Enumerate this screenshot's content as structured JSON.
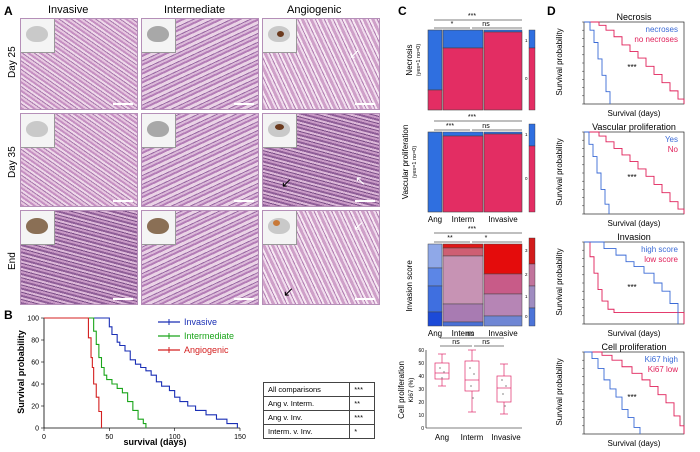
{
  "panels": {
    "A": "A",
    "B": "B",
    "C": "C",
    "D": "D"
  },
  "panelA": {
    "columns": [
      "Invasive",
      "Intermediate",
      "Angiogenic"
    ],
    "rows": [
      "Day 25",
      "Day 35",
      "End"
    ]
  },
  "panelB": {
    "legend": [
      "Invasive",
      "Intermediate",
      "Angiogenic"
    ],
    "colors": {
      "Invasive": "#1a2fb5",
      "Intermediate": "#1aa51a",
      "Angiogenic": "#d42020"
    },
    "table": [
      [
        "All comparisons",
        "***"
      ],
      [
        "Ang v. Interm.",
        "**"
      ],
      [
        "Ang v. Inv.",
        "***"
      ],
      [
        "Interm. v. Inv.",
        "*"
      ]
    ]
  },
  "panelC": {
    "necrosis": {
      "ylabel": "Necrosis",
      "sub": "(yes=1 no=0)",
      "sig": [
        "***",
        "*",
        "ns"
      ]
    },
    "vascular": {
      "ylabel": "Vascular proliferation",
      "sub": "(yes=1 no=0)",
      "sig": [
        "***",
        "***",
        "ns"
      ]
    },
    "invasion": {
      "ylabel": "Invasion score",
      "sig": [
        "***",
        "**",
        "*"
      ]
    },
    "cellprolif": {
      "ylabel": "Cell proliferation",
      "sub": "Ki67 (%)",
      "sig": [
        "ns",
        "ns",
        "ns"
      ]
    },
    "xcats": [
      "Ang",
      "Interm",
      "Invasive"
    ],
    "right1": [
      "1",
      "0"
    ],
    "right3": [
      "3",
      "2",
      "1",
      "0"
    ]
  },
  "panelD": {
    "plots": [
      {
        "title": "Necrosis",
        "legend": [
          "necroses",
          "no necroses"
        ],
        "sig": "***"
      },
      {
        "title": "Vascular proliferation",
        "legend": [
          "Yes",
          "No"
        ],
        "sig": "***"
      },
      {
        "title": "Invasion",
        "legend": [
          "high score",
          "low score"
        ],
        "sig": "***"
      },
      {
        "title": "Cell proliferation",
        "legend": [
          "Ki67 high",
          "Ki67 low"
        ],
        "sig": "***"
      }
    ],
    "ylabel": "Survival probability",
    "xlabel": "Survival (days)",
    "colors": {
      "blue": "#3a6ad6",
      "red": "#e0205a"
    }
  },
  "chart_data": [
    {
      "type": "line",
      "title": "",
      "xlabel": "survival (days)",
      "ylabel": "Survival probability",
      "xlim": [
        0,
        150
      ],
      "ylim": [
        0,
        100
      ],
      "xticks": [
        0,
        50,
        100,
        150
      ],
      "yticks": [
        0,
        20,
        40,
        60,
        80,
        100
      ],
      "series": [
        {
          "name": "Invasive",
          "x": [
            0,
            46,
            50,
            52,
            56,
            58,
            62,
            66,
            70,
            74,
            78,
            82,
            86,
            90,
            96,
            100,
            104,
            110,
            116,
            124,
            132,
            140,
            148
          ],
          "y": [
            100,
            100,
            92,
            85,
            78,
            75,
            70,
            62,
            58,
            55,
            52,
            48,
            42,
            38,
            34,
            28,
            24,
            20,
            16,
            12,
            8,
            4,
            0
          ]
        },
        {
          "name": "Intermediate",
          "x": [
            0,
            36,
            38,
            40,
            42,
            44,
            46,
            48,
            52,
            56,
            60,
            64,
            68,
            72,
            76,
            78
          ],
          "y": [
            100,
            100,
            88,
            76,
            64,
            55,
            48,
            44,
            40,
            36,
            32,
            24,
            16,
            8,
            4,
            0
          ]
        },
        {
          "name": "Angiogenic",
          "x": [
            0,
            32,
            34,
            36,
            37,
            38,
            40,
            42,
            44
          ],
          "y": [
            100,
            100,
            82,
            64,
            55,
            40,
            28,
            15,
            0
          ]
        }
      ]
    }
  ]
}
